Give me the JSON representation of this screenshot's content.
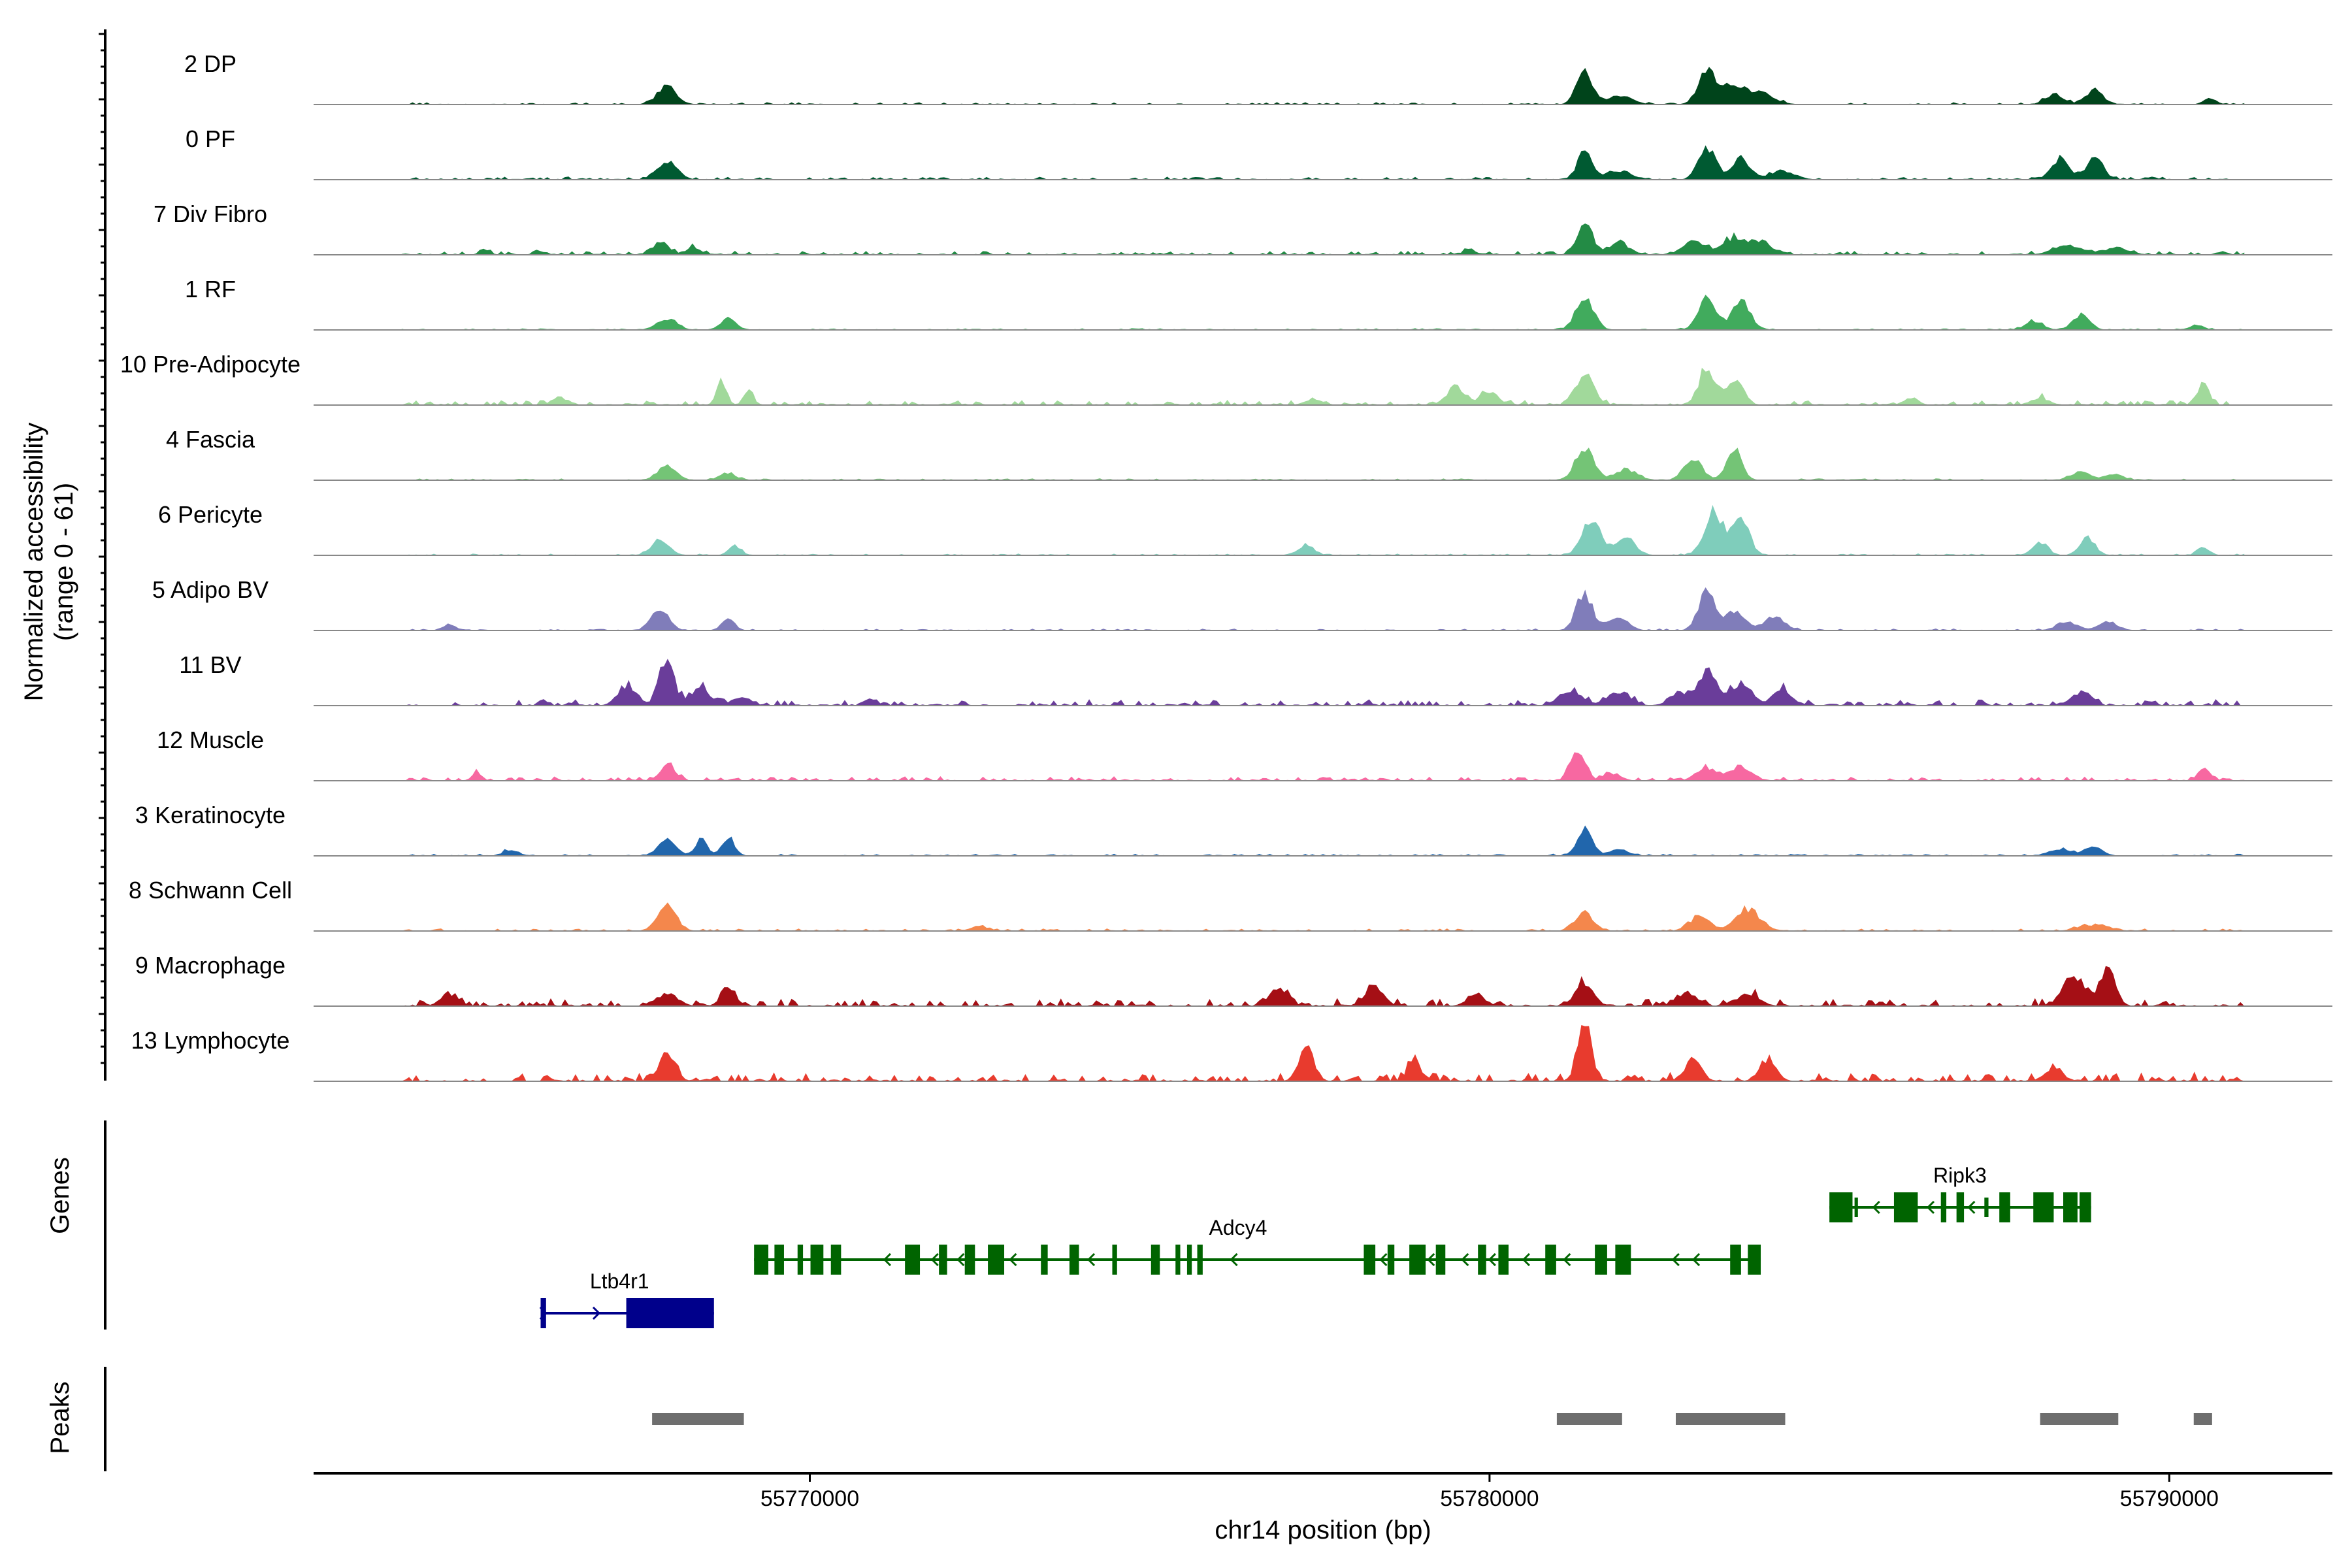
{
  "chart_data": {
    "type": "area",
    "chromosome": "chr14",
    "x_range": [
      55762700,
      55792400
    ],
    "y_range": [
      0,
      61
    ],
    "ylabel_line1": "Normalized accessibility",
    "ylabel_line2": "(range 0 - 61)",
    "xlabel": "chr14 position (bp)",
    "x_ticks": [
      {
        "value": 55770000,
        "label": "55770000"
      },
      {
        "value": 55780000,
        "label": "55780000"
      },
      {
        "value": 55790000,
        "label": "55790000"
      }
    ],
    "genes_label": "Genes",
    "peaks_label": "Peaks",
    "tracks": [
      {
        "name": "2 DP",
        "color": "#00441b",
        "noise": 0.018,
        "peaks": [
          [
            55767900,
            0.28,
            140
          ],
          [
            55781400,
            0.55,
            110
          ],
          [
            55781900,
            0.15,
            180
          ],
          [
            55783200,
            0.55,
            130
          ],
          [
            55783600,
            0.32,
            160
          ],
          [
            55784000,
            0.2,
            180
          ],
          [
            55788300,
            0.16,
            130
          ],
          [
            55788900,
            0.22,
            130
          ],
          [
            55790600,
            0.1,
            90
          ]
        ]
      },
      {
        "name": "0 PF",
        "color": "#005a32",
        "noise": 0.022,
        "peaks": [
          [
            55767900,
            0.32,
            140
          ],
          [
            55781400,
            0.45,
            110
          ],
          [
            55781900,
            0.15,
            180
          ],
          [
            55783200,
            0.55,
            120
          ],
          [
            55783700,
            0.36,
            130
          ],
          [
            55784300,
            0.15,
            180
          ],
          [
            55788400,
            0.35,
            130
          ],
          [
            55788900,
            0.36,
            120
          ]
        ]
      },
      {
        "name": "7 Div Fibro",
        "color": "#238b45",
        "noise": 0.03,
        "peaks": [
          [
            55765200,
            0.1,
            60
          ],
          [
            55766000,
            0.08,
            60
          ],
          [
            55767800,
            0.2,
            120
          ],
          [
            55768300,
            0.12,
            100
          ],
          [
            55779700,
            0.1,
            80
          ],
          [
            55781400,
            0.55,
            110
          ],
          [
            55781900,
            0.2,
            150
          ],
          [
            55783000,
            0.22,
            160
          ],
          [
            55783600,
            0.25,
            180
          ],
          [
            55784000,
            0.2,
            160
          ],
          [
            55788500,
            0.15,
            200
          ],
          [
            55789200,
            0.1,
            200
          ]
        ]
      },
      {
        "name": "1 RF",
        "color": "#41ab5d",
        "noise": 0.012,
        "peaks": [
          [
            55767900,
            0.18,
            140
          ],
          [
            55768800,
            0.2,
            110
          ],
          [
            55781400,
            0.55,
            130
          ],
          [
            55783200,
            0.6,
            120
          ],
          [
            55783700,
            0.45,
            140
          ],
          [
            55788000,
            0.15,
            120
          ],
          [
            55788700,
            0.25,
            120
          ],
          [
            55790400,
            0.08,
            90
          ]
        ]
      },
      {
        "name": "10 Pre-Adipocyte",
        "color": "#a1d99b",
        "noise": 0.04,
        "peaks": [
          [
            55766300,
            0.14,
            90
          ],
          [
            55768700,
            0.4,
            70
          ],
          [
            55769100,
            0.25,
            70
          ],
          [
            55777400,
            0.1,
            110
          ],
          [
            55779500,
            0.28,
            140
          ],
          [
            55780000,
            0.2,
            130
          ],
          [
            55781400,
            0.5,
            130
          ],
          [
            55783200,
            0.6,
            120
          ],
          [
            55783600,
            0.45,
            120
          ],
          [
            55786200,
            0.12,
            100
          ],
          [
            55788100,
            0.12,
            120
          ],
          [
            55790500,
            0.4,
            80
          ]
        ]
      },
      {
        "name": "4 Fascia",
        "color": "#74c476",
        "noise": 0.012,
        "peaks": [
          [
            55767900,
            0.25,
            130
          ],
          [
            55768800,
            0.12,
            110
          ],
          [
            55781400,
            0.55,
            130
          ],
          [
            55782000,
            0.18,
            160
          ],
          [
            55783000,
            0.35,
            130
          ],
          [
            55783600,
            0.5,
            110
          ],
          [
            55788700,
            0.15,
            140
          ],
          [
            55789200,
            0.1,
            120
          ]
        ]
      },
      {
        "name": "6 Pericyte",
        "color": "#7fcdbb",
        "noise": 0.012,
        "peaks": [
          [
            55767800,
            0.25,
            130
          ],
          [
            55768900,
            0.15,
            90
          ],
          [
            55777300,
            0.18,
            110
          ],
          [
            55781500,
            0.55,
            140
          ],
          [
            55782000,
            0.28,
            140
          ],
          [
            55783300,
            0.7,
            140
          ],
          [
            55783700,
            0.6,
            120
          ],
          [
            55788100,
            0.2,
            110
          ],
          [
            55788800,
            0.28,
            110
          ],
          [
            55790500,
            0.15,
            80
          ]
        ]
      },
      {
        "name": "5 Adipo BV",
        "color": "#807dba",
        "noise": 0.014,
        "peaks": [
          [
            55764700,
            0.08,
            90
          ],
          [
            55767800,
            0.3,
            130
          ],
          [
            55768800,
            0.2,
            90
          ],
          [
            55781400,
            0.6,
            120
          ],
          [
            55781900,
            0.2,
            140
          ],
          [
            55783200,
            0.62,
            120
          ],
          [
            55783600,
            0.3,
            150
          ],
          [
            55784200,
            0.22,
            150
          ],
          [
            55788500,
            0.14,
            150
          ],
          [
            55789100,
            0.14,
            140
          ]
        ]
      },
      {
        "name": "11 BV",
        "color": "#6a3d9a",
        "noise": 0.05,
        "peaks": [
          [
            55767300,
            0.3,
            130
          ],
          [
            55767900,
            0.7,
            110
          ],
          [
            55768400,
            0.3,
            130
          ],
          [
            55769000,
            0.15,
            120
          ],
          [
            55770900,
            0.12,
            90
          ],
          [
            55781200,
            0.25,
            160
          ],
          [
            55781900,
            0.22,
            160
          ],
          [
            55782800,
            0.22,
            140
          ],
          [
            55783200,
            0.55,
            130
          ],
          [
            55783700,
            0.38,
            150
          ],
          [
            55784300,
            0.3,
            130
          ],
          [
            55788700,
            0.22,
            130
          ]
        ]
      },
      {
        "name": "12 Muscle",
        "color": "#f768a1",
        "noise": 0.035,
        "peaks": [
          [
            55765100,
            0.12,
            70
          ],
          [
            55767900,
            0.25,
            110
          ],
          [
            55781300,
            0.55,
            100
          ],
          [
            55781800,
            0.12,
            120
          ],
          [
            55783200,
            0.2,
            150
          ],
          [
            55783700,
            0.22,
            160
          ],
          [
            55790500,
            0.22,
            80
          ]
        ]
      },
      {
        "name": "3 Keratinocyte",
        "color": "#2166ac",
        "noise": 0.015,
        "peaks": [
          [
            55765600,
            0.1,
            110
          ],
          [
            55767900,
            0.25,
            130
          ],
          [
            55768400,
            0.25,
            90
          ],
          [
            55768800,
            0.3,
            90
          ],
          [
            55781400,
            0.45,
            110
          ],
          [
            55781900,
            0.1,
            140
          ],
          [
            55788400,
            0.12,
            150
          ],
          [
            55788900,
            0.15,
            120
          ]
        ]
      },
      {
        "name": "8 Schwann Cell",
        "color": "#f4874c",
        "noise": 0.018,
        "peaks": [
          [
            55767900,
            0.45,
            130
          ],
          [
            55772500,
            0.08,
            120
          ],
          [
            55781400,
            0.3,
            130
          ],
          [
            55783100,
            0.25,
            140
          ],
          [
            55783800,
            0.35,
            180
          ],
          [
            55788900,
            0.1,
            200
          ]
        ]
      },
      {
        "name": "9 Macrophage",
        "color": "#a50f15",
        "noise": 0.06,
        "peaks": [
          [
            55764700,
            0.18,
            130
          ],
          [
            55767900,
            0.2,
            150
          ],
          [
            55768800,
            0.35,
            100
          ],
          [
            55776900,
            0.28,
            130
          ],
          [
            55778300,
            0.35,
            130
          ],
          [
            55779800,
            0.2,
            130
          ],
          [
            55781400,
            0.35,
            130
          ],
          [
            55782900,
            0.22,
            140
          ],
          [
            55783800,
            0.2,
            160
          ],
          [
            55788600,
            0.5,
            160
          ],
          [
            55789100,
            0.65,
            110
          ]
        ]
      },
      {
        "name": "13 Lymphocyte",
        "color": "#e83b2e",
        "noise": 0.07,
        "peaks": [
          [
            55767900,
            0.45,
            120
          ],
          [
            55777300,
            0.55,
            110
          ],
          [
            55778900,
            0.3,
            100
          ],
          [
            55781400,
            1.0,
            100
          ],
          [
            55783000,
            0.35,
            120
          ],
          [
            55784100,
            0.35,
            120
          ],
          [
            55788300,
            0.2,
            130
          ]
        ]
      }
    ],
    "genes": [
      {
        "name": "Ltb4r1",
        "color": "#00008b",
        "start": 55766040,
        "end": 55768590,
        "strand": "+",
        "exons": [
          [
            55766040,
            55766120
          ],
          [
            55767300,
            55768590
          ]
        ]
      },
      {
        "name": "Adcy4",
        "color": "#006400",
        "start": 55769180,
        "end": 55783990,
        "strand": "-",
        "exons": [
          [
            55769180,
            55769390
          ],
          [
            55769480,
            55769620
          ],
          [
            55769820,
            55769900
          ],
          [
            55770010,
            55770200
          ],
          [
            55770310,
            55770460
          ],
          [
            55771400,
            55771620
          ],
          [
            55771900,
            55772020
          ],
          [
            55772280,
            55772430
          ],
          [
            55772620,
            55772860
          ],
          [
            55773400,
            55773500
          ],
          [
            55773820,
            55773960
          ],
          [
            55774450,
            55774520
          ],
          [
            55775020,
            55775150
          ],
          [
            55775380,
            55775450
          ],
          [
            55775550,
            55775620
          ],
          [
            55775700,
            55775780
          ],
          [
            55778150,
            55778320
          ],
          [
            55778500,
            55778600
          ],
          [
            55778820,
            55779060
          ],
          [
            55779210,
            55779350
          ],
          [
            55779830,
            55779950
          ],
          [
            55780130,
            55780280
          ],
          [
            55780820,
            55780980
          ],
          [
            55781550,
            55781730
          ],
          [
            55781850,
            55782080
          ],
          [
            55783540,
            55783700
          ],
          [
            55783800,
            55783990
          ]
        ],
        "arrows": [
          55771100,
          55771800,
          55772180,
          55772950,
          55774100,
          55776200,
          55778400,
          55779100,
          55779600,
          55780000,
          55780500,
          55781100,
          55782700,
          55783000
        ]
      },
      {
        "name": "Ripk3",
        "color": "#006400",
        "start": 55785000,
        "end": 55788850,
        "strand": "-",
        "exons": [
          [
            55785000,
            55785340
          ],
          [
            55785370,
            55785420
          ],
          [
            55785950,
            55786300
          ],
          [
            55786640,
            55786720
          ],
          [
            55786870,
            55786980
          ],
          [
            55787280,
            55787340
          ],
          [
            55787500,
            55787660
          ],
          [
            55788000,
            55788300
          ],
          [
            55788440,
            55788650
          ],
          [
            55788680,
            55788850
          ]
        ],
        "arrows": [
          55785650,
          55786450,
          55787050
        ]
      }
    ],
    "peaks": [
      [
        55767680,
        55769030
      ],
      [
        55780990,
        55781950
      ],
      [
        55782740,
        55784350
      ],
      [
        55788100,
        55789250
      ],
      [
        55790360,
        55790630
      ]
    ]
  }
}
